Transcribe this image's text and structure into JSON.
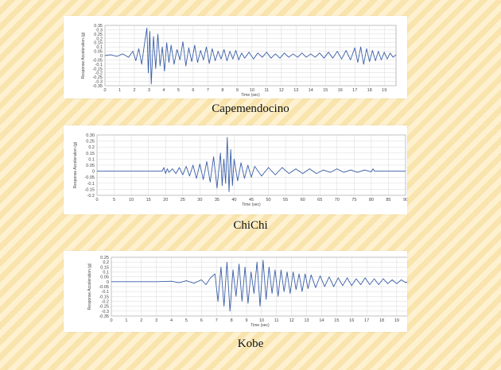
{
  "page": {
    "background_colors": [
      "#fdf1cf",
      "#f9e4ad"
    ],
    "trace_color": "#3a5fa8"
  },
  "charts": [
    {
      "caption": "Capemendocino",
      "chart_data": {
        "type": "line",
        "title": "",
        "xlabel": "Time (sec)",
        "ylabel": "Response Acceleration (g)",
        "x_ticks": [
          "0",
          "1",
          "2",
          "3",
          "4",
          "5",
          "6",
          "7",
          "8",
          "9",
          "10",
          "11",
          "12",
          "13",
          "14",
          "15",
          "16",
          "17",
          "18",
          "19"
        ],
        "y_ticks": [
          "0.35",
          "0.3",
          "0.25",
          "0.2",
          "0.15",
          "0.1",
          "0.05",
          "0",
          "-0.05",
          "-0.1",
          "-0.15",
          "-0.2",
          "-0.25",
          "-0.3",
          "-0.35"
        ],
        "xlim": [
          0,
          19.8
        ],
        "ylim": [
          -0.35,
          0.35
        ],
        "grid": true,
        "series": [
          {
            "x": [
              0,
              0.4,
              0.8,
              1.2,
              1.6,
              1.9,
              2.1,
              2.3,
              2.5,
              2.7,
              2.85,
              2.95,
              3.05,
              3.15,
              3.3,
              3.45,
              3.6,
              3.75,
              3.9,
              4.05,
              4.2,
              4.35,
              4.5,
              4.7,
              4.9,
              5.1,
              5.3,
              5.5,
              5.7,
              5.9,
              6.1,
              6.3,
              6.5,
              6.7,
              6.9,
              7.1,
              7.3,
              7.5,
              7.7,
              7.9,
              8.1,
              8.3,
              8.5,
              8.7,
              8.9,
              9.1,
              9.3,
              9.5,
              9.8,
              10.1,
              10.4,
              10.7,
              11.0,
              11.3,
              11.6,
              11.9,
              12.2,
              12.5,
              12.8,
              13.1,
              13.4,
              13.7,
              14.0,
              14.3,
              14.6,
              14.9,
              15.2,
              15.5,
              15.8,
              16.1,
              16.4,
              16.7,
              17.0,
              17.2,
              17.4,
              17.6,
              17.8,
              18.0,
              18.2,
              18.4,
              18.6,
              18.8,
              19.0,
              19.2,
              19.4,
              19.6,
              19.8
            ],
            "y": [
              0,
              0.01,
              -0.01,
              0.02,
              -0.02,
              0.05,
              -0.06,
              0.08,
              -0.1,
              0.15,
              0.32,
              -0.2,
              0.28,
              -0.33,
              0.22,
              -0.15,
              0.25,
              -0.12,
              0.1,
              -0.18,
              0.15,
              -0.08,
              0.12,
              -0.1,
              0.07,
              -0.05,
              0.16,
              -0.12,
              0.09,
              -0.07,
              0.12,
              -0.08,
              0.06,
              -0.05,
              0.1,
              -0.09,
              0.08,
              -0.06,
              0.05,
              -0.04,
              0.07,
              -0.06,
              0.05,
              -0.04,
              0.06,
              -0.05,
              0.03,
              -0.03,
              0.04,
              -0.04,
              0.03,
              -0.02,
              0.04,
              -0.03,
              0.02,
              -0.03,
              0.03,
              -0.02,
              0.02,
              -0.02,
              0.03,
              -0.02,
              0.02,
              -0.02,
              0.03,
              -0.03,
              0.04,
              -0.03,
              0.05,
              -0.04,
              0.06,
              -0.05,
              0.09,
              -0.08,
              0.1,
              -0.1,
              0.08,
              -0.07,
              0.06,
              -0.06,
              0.05,
              -0.05,
              0.04,
              -0.04,
              0.03,
              -0.02,
              0.01
            ]
          }
        ]
      }
    },
    {
      "caption": "ChiChi",
      "chart_data": {
        "type": "line",
        "title": "",
        "xlabel": "Time (sec)",
        "ylabel": "Response Acceleration (g)",
        "x_ticks": [
          "0",
          "5",
          "10",
          "15",
          "20",
          "25",
          "30",
          "35",
          "40",
          "45",
          "50",
          "55",
          "60",
          "65",
          "70",
          "75",
          "80",
          "85",
          "90"
        ],
        "y_ticks": [
          "0.30",
          "0.25",
          "0.2",
          "0.15",
          "0.1",
          "0.05",
          "0",
          "-0.05",
          "-0.1",
          "-0.15",
          "-0.2"
        ],
        "xlim": [
          0,
          90
        ],
        "ylim": [
          -0.2,
          0.3
        ],
        "grid": true,
        "series": [
          {
            "x": [
              0,
              5,
              10,
              15,
              19,
              19.5,
              20,
              20.5,
              21,
              22,
              23,
              24,
              25,
              26,
              27,
              28,
              29,
              30,
              31,
              32,
              33,
              34,
              35,
              36,
              36.5,
              37,
              37.5,
              38,
              38.5,
              39,
              39.5,
              40,
              41,
              42,
              43,
              44,
              45,
              46,
              48,
              50,
              52,
              54,
              56,
              58,
              60,
              62,
              64,
              66,
              68,
              70,
              72,
              74,
              76,
              78,
              80,
              80.5,
              81,
              85,
              90
            ],
            "y": [
              0,
              0,
              0,
              0,
              0,
              0.03,
              -0.02,
              0.02,
              -0.01,
              0.02,
              -0.02,
              0.03,
              -0.03,
              0.04,
              -0.04,
              0.05,
              -0.06,
              0.06,
              -0.07,
              0.08,
              -0.09,
              0.12,
              -0.14,
              0.15,
              -0.12,
              0.1,
              -0.1,
              0.28,
              -0.17,
              0.18,
              -0.12,
              0.1,
              -0.08,
              0.07,
              -0.06,
              0.05,
              -0.05,
              0.04,
              -0.04,
              0.03,
              -0.03,
              0.03,
              -0.02,
              0.02,
              -0.02,
              0.02,
              -0.02,
              0.01,
              -0.01,
              0.02,
              -0.01,
              0.01,
              -0.01,
              0.01,
              -0.005,
              0.02,
              0,
              0,
              0
            ]
          }
        ]
      }
    },
    {
      "caption": "Kobe",
      "chart_data": {
        "type": "line",
        "title": "",
        "xlabel": "Time (sec)",
        "ylabel": "Response Acceleration (g)",
        "x_ticks": [
          "0",
          "1",
          "2",
          "3",
          "4",
          "5",
          "6",
          "7",
          "8",
          "9",
          "10",
          "11",
          "12",
          "13",
          "14",
          "15",
          "16",
          "17",
          "18",
          "19"
        ],
        "y_ticks": [
          "0.25",
          "0.2",
          "0.15",
          "0.1",
          "0.05",
          "0",
          "-0.05",
          "-0.1",
          "-0.15",
          "-0.2",
          "-0.25",
          "-0.3",
          "-0.35"
        ],
        "xlim": [
          0,
          19.8
        ],
        "ylim": [
          -0.35,
          0.25
        ],
        "grid": true,
        "series": [
          {
            "x": [
              0,
              1,
              2,
              3,
              4,
              4.5,
              5,
              5.5,
              6,
              6.3,
              6.6,
              6.9,
              7.1,
              7.3,
              7.5,
              7.7,
              7.9,
              8.1,
              8.3,
              8.5,
              8.7,
              8.9,
              9.1,
              9.3,
              9.5,
              9.7,
              9.9,
              10.1,
              10.3,
              10.5,
              10.7,
              10.9,
              11.1,
              11.3,
              11.5,
              11.7,
              11.9,
              12.1,
              12.3,
              12.5,
              12.7,
              12.9,
              13.1,
              13.3,
              13.6,
              13.9,
              14.2,
              14.5,
              14.8,
              15.1,
              15.4,
              15.7,
              16.0,
              16.3,
              16.6,
              16.9,
              17.2,
              17.5,
              17.8,
              18.1,
              18.4,
              18.7,
              19.0,
              19.3,
              19.6,
              19.8
            ],
            "y": [
              0,
              0,
              0,
              0,
              0.005,
              -0.01,
              0.01,
              -0.015,
              0.02,
              -0.03,
              0.04,
              0.08,
              -0.2,
              0.15,
              -0.25,
              0.2,
              -0.3,
              0.12,
              -0.15,
              0.18,
              -0.2,
              0.15,
              -0.22,
              0.1,
              -0.12,
              0.2,
              -0.25,
              0.22,
              -0.18,
              0.15,
              -0.12,
              0.12,
              -0.15,
              0.12,
              -0.1,
              0.1,
              -0.12,
              0.1,
              -0.08,
              0.08,
              -0.1,
              0.08,
              -0.07,
              0.07,
              -0.06,
              0.06,
              -0.05,
              0.05,
              -0.05,
              0.04,
              -0.04,
              0.04,
              -0.04,
              0.03,
              -0.03,
              0.04,
              -0.03,
              0.03,
              -0.03,
              0.03,
              -0.02,
              0.02,
              -0.02,
              0.02,
              -0.01,
              0.01
            ]
          }
        ]
      }
    }
  ]
}
